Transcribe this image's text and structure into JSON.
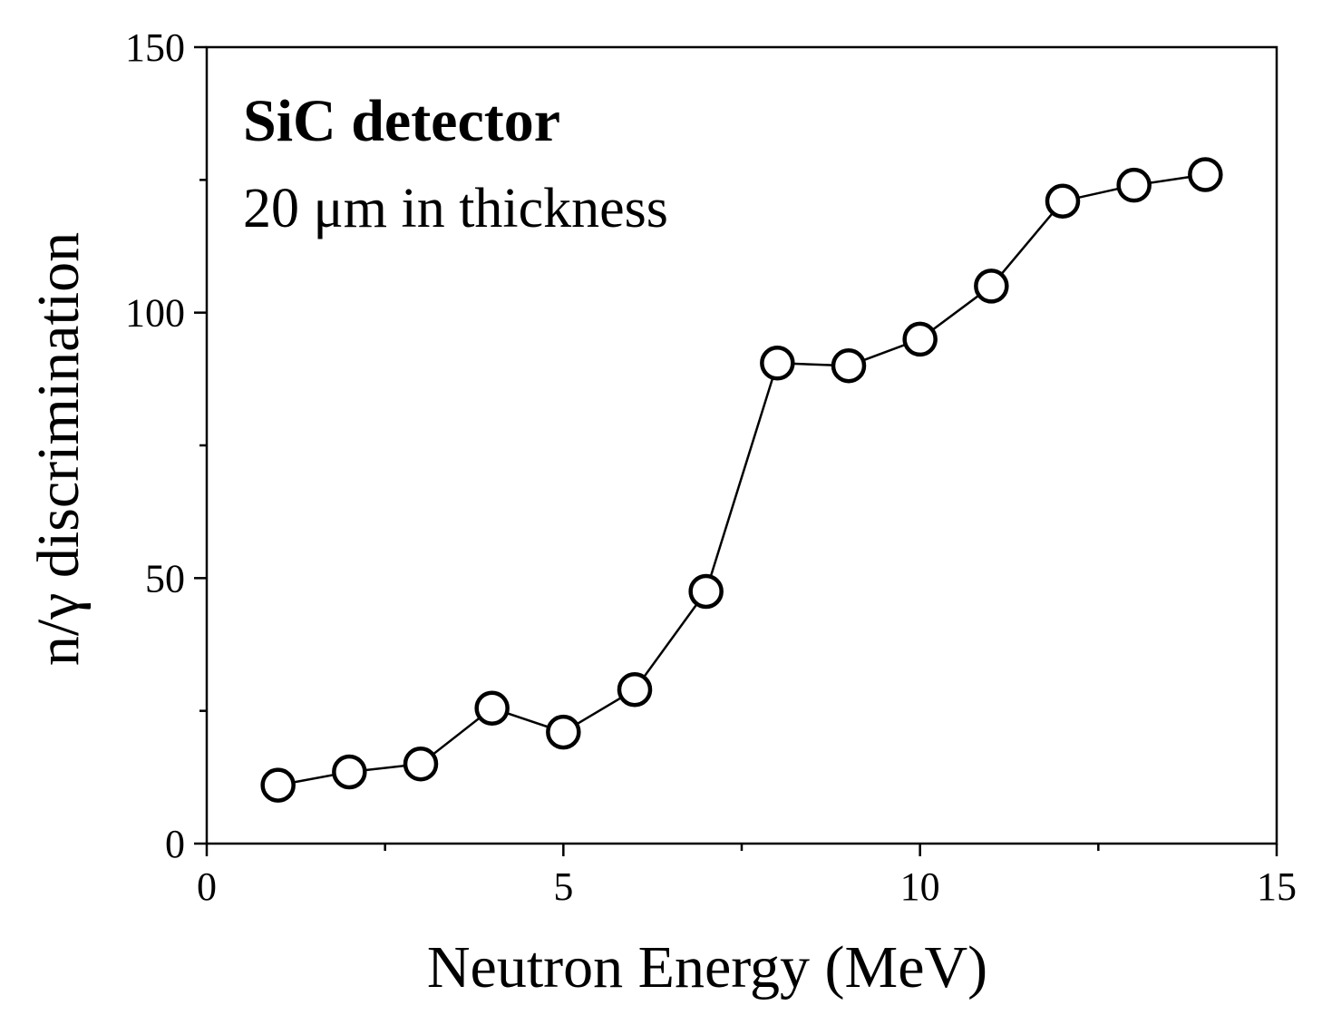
{
  "chart_data": {
    "type": "line",
    "title": "",
    "xlabel": "Neutron Energy (MeV)",
    "ylabel": "n/γ discrimination",
    "xlim": [
      0,
      15
    ],
    "ylim": [
      0,
      150
    ],
    "xticks": [
      0,
      5,
      10,
      15
    ],
    "yticks": [
      0,
      50,
      100,
      150
    ],
    "xticks_minor": [
      2.5,
      7.5,
      12.5
    ],
    "yticks_minor": [
      25,
      75,
      125
    ],
    "grid": false,
    "legend": "none",
    "annotations": {
      "title": "SiC detector",
      "subtitle": "20 μm in thickness"
    },
    "series": [
      {
        "name": "SiC detector 20 μm",
        "marker": "open-circle",
        "x": [
          1,
          2,
          3,
          4,
          5,
          6,
          7,
          8,
          9,
          10,
          11,
          12,
          13,
          14
        ],
        "y": [
          11,
          13.5,
          15,
          25.5,
          21,
          29,
          47.5,
          90.5,
          90,
          95,
          105,
          121,
          124,
          126
        ]
      }
    ]
  }
}
